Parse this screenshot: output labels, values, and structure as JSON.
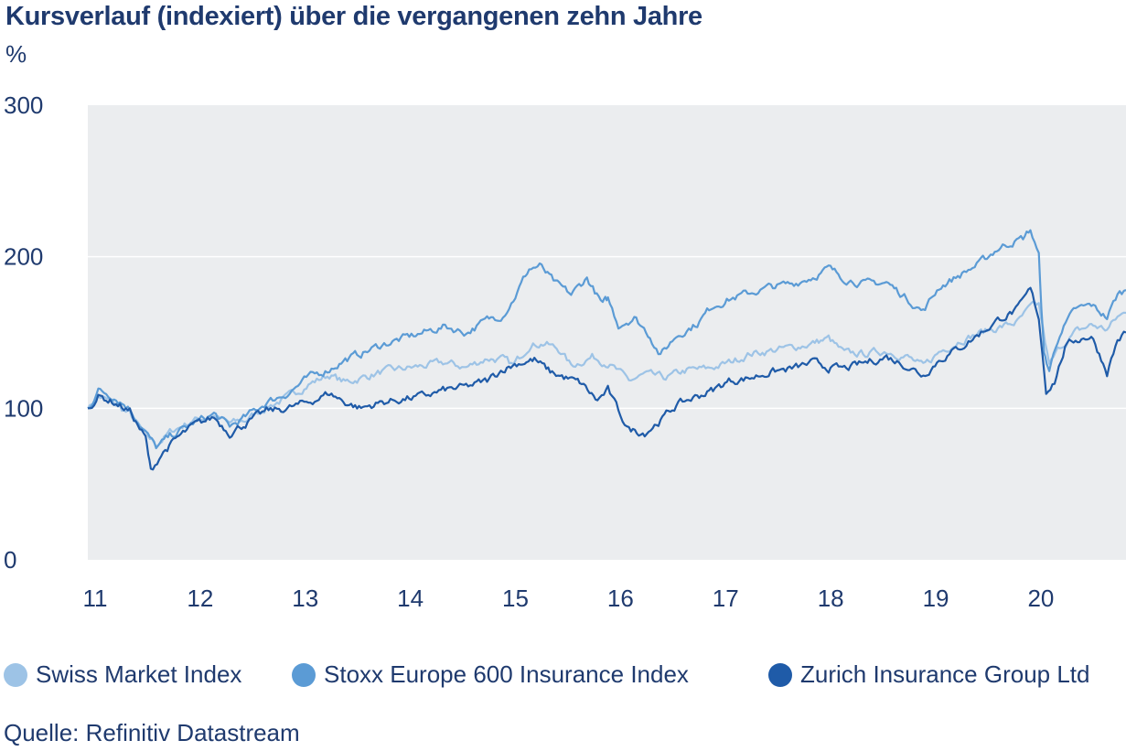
{
  "title": "Kursverlauf (indexiert) über die vergangenen zehn Jahre",
  "unit": "%",
  "source": "Quelle: Refinitiv Datastream",
  "colors": {
    "smi": "#9dc3e6",
    "stoxx": "#5b9bd5",
    "zurich": "#1f5ba8",
    "plot_bg": "#ebedef",
    "grid": "#ffffff",
    "text": "#1f3a6e"
  },
  "chart_data": {
    "type": "line",
    "title": "Kursverlauf (indexiert) über die vergangenen zehn Jahre",
    "ylabel": "%",
    "ylim": [
      0,
      300
    ],
    "yticks": [
      0,
      100,
      200,
      300
    ],
    "xlim": [
      2011.0,
      2020.88
    ],
    "xticks": [
      {
        "label": "11",
        "value": 2011
      },
      {
        "label": "12",
        "value": 2012
      },
      {
        "label": "13",
        "value": 2013
      },
      {
        "label": "14",
        "value": 2014
      },
      {
        "label": "15",
        "value": 2015
      },
      {
        "label": "16",
        "value": 2016
      },
      {
        "label": "17",
        "value": 2017
      },
      {
        "label": "18",
        "value": 2018
      },
      {
        "label": "19",
        "value": 2019
      },
      {
        "label": "20",
        "value": 2020
      }
    ],
    "grid": "horizontal",
    "legend": "bottom",
    "series": [
      {
        "name": "Swiss Market Index",
        "color": "#9dc3e6",
        "points": [
          [
            2011.0,
            100
          ],
          [
            2011.1,
            108
          ],
          [
            2011.25,
            103
          ],
          [
            2011.4,
            96
          ],
          [
            2011.55,
            82
          ],
          [
            2011.65,
            76
          ],
          [
            2011.8,
            85
          ],
          [
            2012.0,
            92
          ],
          [
            2012.2,
            95
          ],
          [
            2012.35,
            90
          ],
          [
            2012.5,
            92
          ],
          [
            2012.7,
            101
          ],
          [
            2012.9,
            107
          ],
          [
            2013.1,
            116
          ],
          [
            2013.3,
            122
          ],
          [
            2013.45,
            117
          ],
          [
            2013.6,
            120
          ],
          [
            2013.8,
            124
          ],
          [
            2014.0,
            126
          ],
          [
            2014.2,
            128
          ],
          [
            2014.4,
            130
          ],
          [
            2014.6,
            127
          ],
          [
            2014.8,
            133
          ],
          [
            2014.95,
            132
          ],
          [
            2015.05,
            128
          ],
          [
            2015.2,
            142
          ],
          [
            2015.35,
            143
          ],
          [
            2015.5,
            138
          ],
          [
            2015.6,
            128
          ],
          [
            2015.8,
            134
          ],
          [
            2015.95,
            130
          ],
          [
            2016.05,
            124
          ],
          [
            2016.15,
            118
          ],
          [
            2016.3,
            122
          ],
          [
            2016.5,
            120
          ],
          [
            2016.7,
            125
          ],
          [
            2016.9,
            126
          ],
          [
            2017.1,
            130
          ],
          [
            2017.3,
            136
          ],
          [
            2017.5,
            138
          ],
          [
            2017.7,
            140
          ],
          [
            2017.9,
            143
          ],
          [
            2018.05,
            146
          ],
          [
            2018.2,
            136
          ],
          [
            2018.4,
            136
          ],
          [
            2018.6,
            138
          ],
          [
            2018.8,
            134
          ],
          [
            2018.95,
            127
          ],
          [
            2019.1,
            137
          ],
          [
            2019.3,
            145
          ],
          [
            2019.5,
            150
          ],
          [
            2019.7,
            154
          ],
          [
            2019.85,
            157
          ],
          [
            2019.97,
            166
          ],
          [
            2020.05,
            168
          ],
          [
            2020.15,
            128
          ],
          [
            2020.25,
            140
          ],
          [
            2020.4,
            150
          ],
          [
            2020.55,
            155
          ],
          [
            2020.7,
            152
          ],
          [
            2020.8,
            160
          ],
          [
            2020.88,
            163
          ]
        ]
      },
      {
        "name": "Stoxx Europe 600 Insurance Index",
        "color": "#5b9bd5",
        "points": [
          [
            2011.0,
            100
          ],
          [
            2011.1,
            112
          ],
          [
            2011.25,
            108
          ],
          [
            2011.4,
            100
          ],
          [
            2011.55,
            84
          ],
          [
            2011.65,
            74
          ],
          [
            2011.8,
            82
          ],
          [
            2012.0,
            90
          ],
          [
            2012.2,
            96
          ],
          [
            2012.35,
            88
          ],
          [
            2012.5,
            94
          ],
          [
            2012.7,
            104
          ],
          [
            2012.9,
            110
          ],
          [
            2013.1,
            120
          ],
          [
            2013.3,
            126
          ],
          [
            2013.45,
            132
          ],
          [
            2013.6,
            136
          ],
          [
            2013.8,
            142
          ],
          [
            2014.0,
            146
          ],
          [
            2014.2,
            150
          ],
          [
            2014.4,
            154
          ],
          [
            2014.6,
            150
          ],
          [
            2014.8,
            158
          ],
          [
            2014.95,
            162
          ],
          [
            2015.05,
            172
          ],
          [
            2015.2,
            192
          ],
          [
            2015.3,
            194
          ],
          [
            2015.45,
            182
          ],
          [
            2015.6,
            175
          ],
          [
            2015.75,
            186
          ],
          [
            2015.9,
            168
          ],
          [
            2015.95,
            172
          ],
          [
            2016.05,
            155
          ],
          [
            2016.2,
            160
          ],
          [
            2016.35,
            148
          ],
          [
            2016.45,
            135
          ],
          [
            2016.6,
            148
          ],
          [
            2016.8,
            156
          ],
          [
            2016.95,
            168
          ],
          [
            2017.1,
            172
          ],
          [
            2017.3,
            176
          ],
          [
            2017.5,
            180
          ],
          [
            2017.7,
            182
          ],
          [
            2017.9,
            187
          ],
          [
            2018.05,
            192
          ],
          [
            2018.2,
            186
          ],
          [
            2018.4,
            182
          ],
          [
            2018.6,
            183
          ],
          [
            2018.75,
            175
          ],
          [
            2018.95,
            164
          ],
          [
            2019.1,
            180
          ],
          [
            2019.3,
            188
          ],
          [
            2019.5,
            196
          ],
          [
            2019.65,
            205
          ],
          [
            2019.8,
            210
          ],
          [
            2019.9,
            212
          ],
          [
            2019.97,
            218
          ],
          [
            2020.05,
            200
          ],
          [
            2020.1,
            135
          ],
          [
            2020.15,
            125
          ],
          [
            2020.25,
            150
          ],
          [
            2020.4,
            165
          ],
          [
            2020.55,
            168
          ],
          [
            2020.7,
            160
          ],
          [
            2020.8,
            175
          ],
          [
            2020.88,
            178
          ]
        ]
      },
      {
        "name": "Zurich Insurance Group Ltd",
        "color": "#1f5ba8",
        "points": [
          [
            2011.0,
            100
          ],
          [
            2011.1,
            108
          ],
          [
            2011.25,
            104
          ],
          [
            2011.4,
            98
          ],
          [
            2011.55,
            80
          ],
          [
            2011.6,
            58
          ],
          [
            2011.7,
            70
          ],
          [
            2011.85,
            80
          ],
          [
            2012.0,
            88
          ],
          [
            2012.2,
            94
          ],
          [
            2012.35,
            84
          ],
          [
            2012.5,
            90
          ],
          [
            2012.7,
            98
          ],
          [
            2012.9,
            100
          ],
          [
            2013.1,
            104
          ],
          [
            2013.3,
            110
          ],
          [
            2013.45,
            104
          ],
          [
            2013.6,
            100
          ],
          [
            2013.8,
            104
          ],
          [
            2014.0,
            106
          ],
          [
            2014.2,
            108
          ],
          [
            2014.4,
            112
          ],
          [
            2014.6,
            114
          ],
          [
            2014.8,
            118
          ],
          [
            2014.95,
            126
          ],
          [
            2015.1,
            130
          ],
          [
            2015.25,
            132
          ],
          [
            2015.4,
            124
          ],
          [
            2015.55,
            120
          ],
          [
            2015.7,
            116
          ],
          [
            2015.85,
            105
          ],
          [
            2015.95,
            112
          ],
          [
            2016.05,
            98
          ],
          [
            2016.15,
            86
          ],
          [
            2016.3,
            84
          ],
          [
            2016.45,
            92
          ],
          [
            2016.6,
            102
          ],
          [
            2016.8,
            108
          ],
          [
            2016.95,
            112
          ],
          [
            2017.1,
            118
          ],
          [
            2017.3,
            120
          ],
          [
            2017.5,
            124
          ],
          [
            2017.7,
            126
          ],
          [
            2017.9,
            130
          ],
          [
            2018.05,
            127
          ],
          [
            2018.2,
            126
          ],
          [
            2018.4,
            130
          ],
          [
            2018.6,
            134
          ],
          [
            2018.8,
            128
          ],
          [
            2018.95,
            122
          ],
          [
            2019.1,
            132
          ],
          [
            2019.3,
            140
          ],
          [
            2019.5,
            150
          ],
          [
            2019.7,
            160
          ],
          [
            2019.85,
            165
          ],
          [
            2019.97,
            178
          ],
          [
            2020.05,
            160
          ],
          [
            2020.12,
            112
          ],
          [
            2020.2,
            118
          ],
          [
            2020.3,
            140
          ],
          [
            2020.4,
            145
          ],
          [
            2020.55,
            148
          ],
          [
            2020.7,
            124
          ],
          [
            2020.8,
            145
          ],
          [
            2020.88,
            150
          ]
        ]
      }
    ]
  }
}
